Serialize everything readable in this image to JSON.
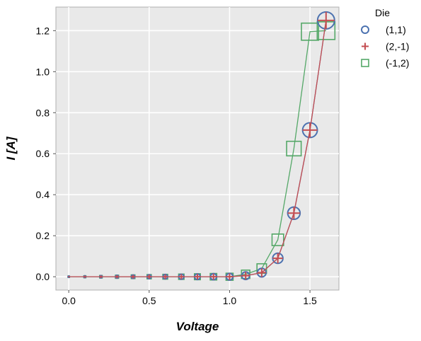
{
  "chart_data": {
    "type": "scatter",
    "xlabel": "Voltage",
    "ylabel": "I [A]",
    "xlim": [
      -0.08,
      1.68
    ],
    "ylim": [
      -0.065,
      1.315
    ],
    "xticks": [
      0.0,
      0.5,
      1.0,
      1.5
    ],
    "xtick_labels": [
      "0.0",
      "0.5",
      "1.0",
      "1.5"
    ],
    "yticks": [
      0.0,
      0.2,
      0.4,
      0.6,
      0.8,
      1.0,
      1.2
    ],
    "ytick_labels": [
      "0.0",
      "0.2",
      "0.4",
      "0.6",
      "0.8",
      "1.0",
      "1.2"
    ],
    "grid": true,
    "legend": {
      "title": "Die",
      "placement": "outside-right-top"
    },
    "x": [
      0.0,
      0.1,
      0.2,
      0.3,
      0.4,
      0.5,
      0.6,
      0.7,
      0.8,
      0.9,
      1.0,
      1.1,
      1.2,
      1.3,
      1.4,
      1.5,
      1.6
    ],
    "series": [
      {
        "name": "(1,1)",
        "marker": "circle",
        "color": "#4c72b0",
        "values": [
          0.0,
          0.0,
          0.0,
          0.0,
          0.0,
          0.0,
          0.0,
          0.0,
          0.0,
          0.0,
          0.0,
          0.005,
          0.02,
          0.09,
          0.31,
          0.715,
          1.25
        ]
      },
      {
        "name": "(2,-1)",
        "marker": "plus",
        "color": "#c44e52",
        "values": [
          0.0,
          0.0,
          0.0,
          0.0,
          0.0,
          0.0,
          0.0,
          0.0,
          0.0,
          0.0,
          0.0,
          0.005,
          0.02,
          0.09,
          0.31,
          0.715,
          1.25
        ]
      },
      {
        "name": "(-1,2)",
        "marker": "square",
        "color": "#55a868",
        "values": [
          0.0,
          0.0,
          0.0,
          0.0,
          0.0,
          0.0,
          0.0,
          0.0,
          0.0,
          0.0,
          0.0,
          0.012,
          0.04,
          0.18,
          0.625,
          1.195,
          1.2
        ]
      }
    ]
  }
}
